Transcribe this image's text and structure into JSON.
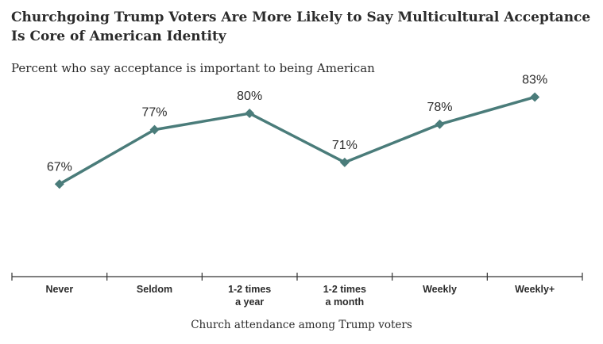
{
  "title": "Churchgoing Trump Voters Are More Likely to Say Multicultural Acceptance Is Core of American Identity",
  "subtitle": "Percent who say acceptance is important to being American",
  "chart_data": {
    "type": "line",
    "title": "Churchgoing Trump Voters Are More Likely to Say Multicultural Acceptance Is Core of American Identity",
    "subtitle": "Percent who say acceptance is important to being American",
    "xlabel": "Church attendance among Trump voters",
    "ylabel": "",
    "categories": [
      [
        "Never"
      ],
      [
        "Seldom"
      ],
      [
        "1-2 times",
        "a year"
      ],
      [
        "1-2 times",
        "a month"
      ],
      [
        "Weekly"
      ],
      [
        "Weekly+"
      ]
    ],
    "series": [
      {
        "name": "",
        "values": [
          67,
          77,
          80,
          71,
          78,
          83
        ],
        "labels": [
          "67%",
          "77%",
          "80%",
          "71%",
          "78%",
          "83%"
        ]
      }
    ],
    "ylim": [
      50,
      87
    ],
    "grid": false,
    "color": "#4a7c7a"
  }
}
